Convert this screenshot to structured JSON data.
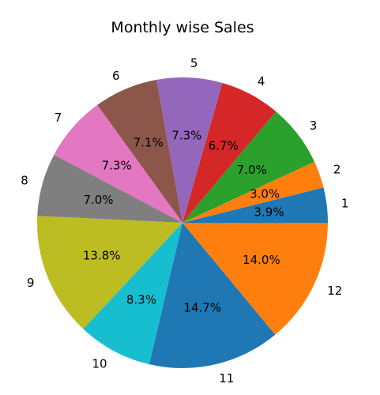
{
  "chart_data": {
    "type": "pie",
    "title": "Monthly wise Sales",
    "start_angle_deg": 0,
    "direction": "counterclockwise",
    "labels": [
      "1",
      "2",
      "3",
      "4",
      "5",
      "6",
      "7",
      "8",
      "9",
      "10",
      "11",
      "12"
    ],
    "values": [
      3.9,
      3.0,
      7.0,
      6.7,
      7.3,
      7.1,
      7.3,
      7.0,
      13.8,
      8.3,
      14.7,
      14.0
    ],
    "percent_labels": [
      "3.9%",
      "3.0%",
      "7.0%",
      "6.7%",
      "7.3%",
      "7.1%",
      "7.3%",
      "7.0%",
      "13.8%",
      "8.3%",
      "14.7%",
      "14.0%"
    ],
    "colors": [
      "#1f77b4",
      "#ff7f0e",
      "#2ca02c",
      "#d62728",
      "#9467bd",
      "#8c564b",
      "#e377c2",
      "#7f7f7f",
      "#bcbd22",
      "#17becf",
      "#1f77b4",
      "#ff7f0e"
    ]
  }
}
